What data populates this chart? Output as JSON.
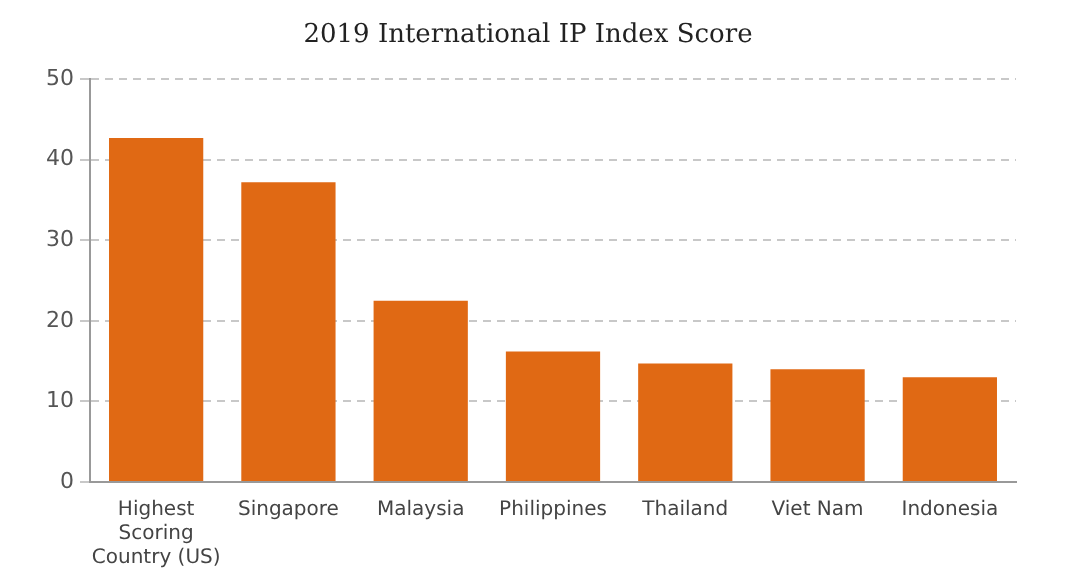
{
  "chart_data": {
    "type": "bar",
    "title": "2019 International IP Index Score",
    "categories": [
      "Highest Scoring Country (US)",
      "Singapore",
      "Malaysia",
      "Philippines",
      "Thailand",
      "Viet Nam",
      "Indonesia"
    ],
    "values": [
      42.7,
      37.2,
      22.5,
      16.2,
      14.7,
      14.0,
      13.0
    ],
    "color": "#e06914",
    "ylim": [
      0,
      50
    ],
    "yticks": [
      0,
      10,
      20,
      30,
      40,
      50
    ],
    "grid": "y"
  }
}
